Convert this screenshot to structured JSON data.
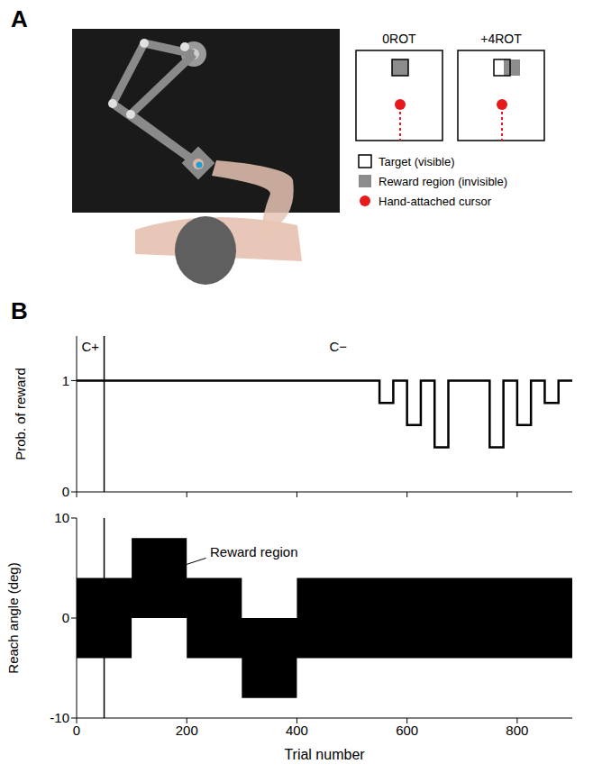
{
  "diagram": {
    "panel": "A",
    "conditions": [
      "0ROT",
      "+4ROT"
    ],
    "legend": [
      {
        "label": "Target (visible)",
        "color": "#ffffff"
      },
      {
        "label": "Reward region (invisible)",
        "color": "#8c8c8c"
      },
      {
        "label": "Hand-attached cursor",
        "color": "#e8191c"
      }
    ]
  },
  "chart_panel": "B",
  "chart_data": [
    {
      "type": "line",
      "line_style": "step",
      "y_label": "Prob. of reward",
      "x": [
        0,
        550,
        575,
        600,
        625,
        650,
        675,
        750,
        775,
        800,
        825,
        850,
        875,
        900
      ],
      "values": [
        1,
        0.8,
        1,
        0.6,
        1,
        0.4,
        1,
        0.4,
        1,
        0.6,
        1,
        0.8,
        1,
        1
      ],
      "color": "#000000",
      "xlim": [
        0,
        900
      ],
      "xticks": [
        0,
        200,
        400,
        600,
        800
      ],
      "ylim": [
        0,
        1.4
      ],
      "yticks": [
        0,
        1
      ],
      "tick_labels": "y",
      "vline_x": 50,
      "annotations": [
        "C+",
        "C−"
      ]
    },
    {
      "type": "area",
      "line_style": "step",
      "x_label": "Trial number",
      "y_label": "Reach angle (deg)",
      "x": [
        0,
        100,
        200,
        300,
        400,
        900
      ],
      "lower": [
        -4,
        0,
        -4,
        -8,
        -4,
        -4
      ],
      "upper": [
        4,
        8,
        4,
        0,
        4,
        4
      ],
      "color": "#000000",
      "xlim": [
        0,
        900
      ],
      "xticks": [
        0,
        200,
        400,
        600,
        800
      ],
      "ylim": [
        -10,
        10
      ],
      "yticks": [
        -10,
        0,
        10
      ],
      "vline_x": 50,
      "annotation": "Reward region"
    }
  ]
}
